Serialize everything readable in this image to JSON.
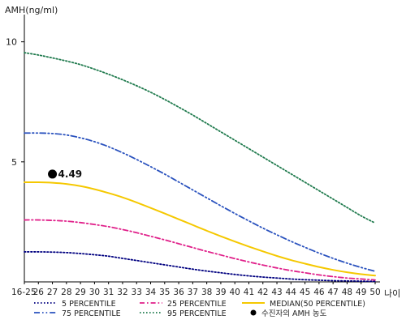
{
  "chart_data": {
    "type": "line",
    "ylabel": "AMH(ng/ml)",
    "xlabel": "나이",
    "x_ticks": [
      "16-25",
      "26",
      "27",
      "28",
      "29",
      "30",
      "31",
      "32",
      "33",
      "34",
      "35",
      "36",
      "37",
      "38",
      "39",
      "40",
      "41",
      "42",
      "43",
      "44",
      "45",
      "46",
      "47",
      "48",
      "49",
      "50"
    ],
    "y_ticks": [
      5,
      10
    ],
    "ylim": [
      0,
      11
    ],
    "series": [
      {
        "name": "5 PERCENTILE",
        "color": "#000080",
        "dash": "dotted",
        "values": [
          1.25,
          1.25,
          1.24,
          1.22,
          1.18,
          1.13,
          1.07,
          0.98,
          0.89,
          0.8,
          0.71,
          0.62,
          0.53,
          0.45,
          0.38,
          0.31,
          0.25,
          0.2,
          0.16,
          0.12,
          0.09,
          0.07,
          0.05,
          0.04,
          0.03,
          0.02
        ]
      },
      {
        "name": "25 PERCENTILE",
        "color": "#e0208a",
        "dash": "dashdot",
        "values": [
          2.58,
          2.58,
          2.56,
          2.53,
          2.47,
          2.39,
          2.3,
          2.18,
          2.05,
          1.9,
          1.75,
          1.59,
          1.43,
          1.27,
          1.12,
          0.97,
          0.83,
          0.7,
          0.58,
          0.47,
          0.38,
          0.29,
          0.22,
          0.16,
          0.12,
          0.08
        ]
      },
      {
        "name": "MEDIAN(50 PERCENTILE)",
        "color": "#f5c800",
        "dash": "solid",
        "values": [
          4.15,
          4.15,
          4.13,
          4.08,
          3.99,
          3.86,
          3.7,
          3.52,
          3.31,
          3.08,
          2.85,
          2.61,
          2.37,
          2.13,
          1.9,
          1.68,
          1.47,
          1.27,
          1.08,
          0.91,
          0.76,
          0.62,
          0.5,
          0.4,
          0.32,
          0.26
        ]
      },
      {
        "name": "75 PERCENTILE",
        "color": "#2a52be",
        "dash": "dashdotdot",
        "values": [
          6.2,
          6.2,
          6.18,
          6.12,
          6.0,
          5.84,
          5.63,
          5.38,
          5.1,
          4.8,
          4.49,
          4.16,
          3.83,
          3.5,
          3.17,
          2.85,
          2.54,
          2.24,
          1.96,
          1.69,
          1.44,
          1.2,
          0.98,
          0.78,
          0.6,
          0.44
        ]
      },
      {
        "name": "95 PERCENTILE",
        "color": "#1f7a4d",
        "dash": "dotted",
        "values": [
          9.55,
          9.45,
          9.33,
          9.2,
          9.05,
          8.86,
          8.65,
          8.42,
          8.17,
          7.9,
          7.6,
          7.28,
          6.95,
          6.6,
          6.25,
          5.9,
          5.55,
          5.2,
          4.85,
          4.5,
          4.15,
          3.8,
          3.45,
          3.1,
          2.75,
          2.45
        ]
      }
    ],
    "points": [
      {
        "name": "수진자의 AMH 농도",
        "x": "27",
        "value": 4.49,
        "label": "4.49",
        "color": "#000000"
      }
    ],
    "legend": {
      "placement": "bottom",
      "items": [
        {
          "label": "5 PERCENTILE",
          "color": "#000080",
          "dash": "dotted"
        },
        {
          "label": "25 PERCENTILE",
          "color": "#e0208a",
          "dash": "dashdot"
        },
        {
          "label": "MEDIAN(50 PERCENTILE)",
          "color": "#f5c800",
          "dash": "solid"
        },
        {
          "label": "75 PERCENTILE",
          "color": "#2a52be",
          "dash": "dashdotdot"
        },
        {
          "label": "95 PERCENTILE",
          "color": "#1f7a4d",
          "dash": "dotted"
        },
        {
          "label": "수진자의 AMH 농도",
          "color": "#000000",
          "marker": "circle"
        }
      ]
    },
    "grid": false
  }
}
